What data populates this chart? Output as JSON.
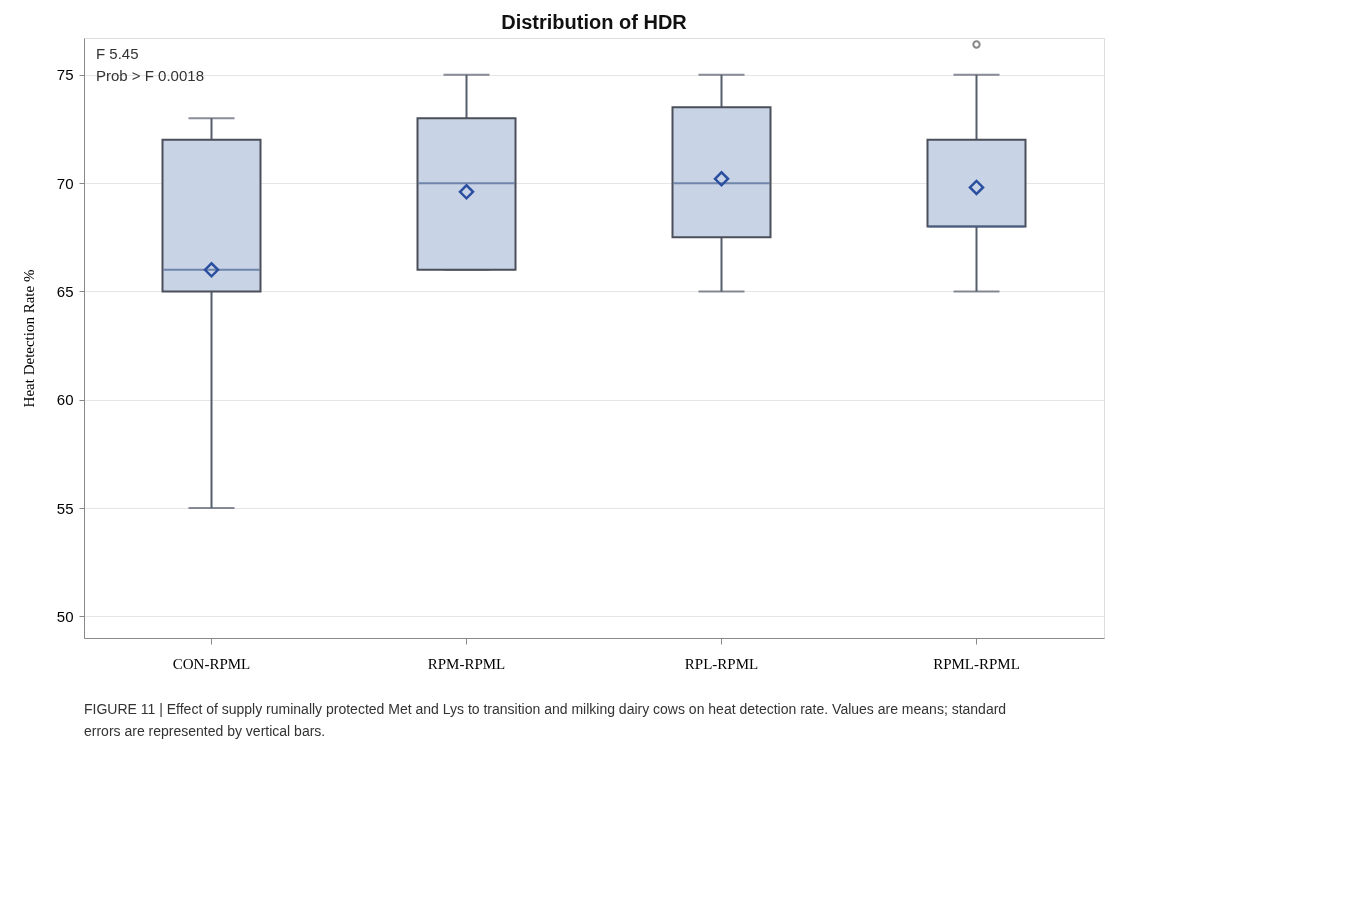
{
  "chart_data": {
    "type": "box",
    "title": "Distribution of HDR",
    "ylabel": "Heat Detection Rate %",
    "categories": [
      "CON-RPML",
      "RPM-RPML",
      "RPL-RPML",
      "RPML-RPML"
    ],
    "boxes": [
      {
        "low": 55,
        "q1": 65,
        "median": 66,
        "q3": 72,
        "high": 73,
        "mean": 66
      },
      {
        "low": 66,
        "q1": 66,
        "median": 70,
        "q3": 73,
        "high": 75,
        "mean": 69.6
      },
      {
        "low": 65,
        "q1": 67.5,
        "median": 70,
        "q3": 73.5,
        "high": 75,
        "mean": 70.2
      },
      {
        "low": 65,
        "q1": 68,
        "median": 68,
        "q3": 72,
        "high": 75,
        "mean": 69.8,
        "outliers": [
          76.4
        ]
      }
    ],
    "color": "#c8d3e5",
    "ylim": [
      49,
      76.7
    ],
    "yticks": [
      50,
      55,
      60,
      65,
      70,
      75
    ],
    "grid": "y",
    "marker": "diamond",
    "annotations": [
      "F 5.45",
      "Prob > F 0.0018",
      "FIGURE 11 | Effect of supply ruminally protected Met and Lys to transition and milking dairy cows on heat detection rate. Values are means; standard errors are represented by vertical bars."
    ]
  }
}
